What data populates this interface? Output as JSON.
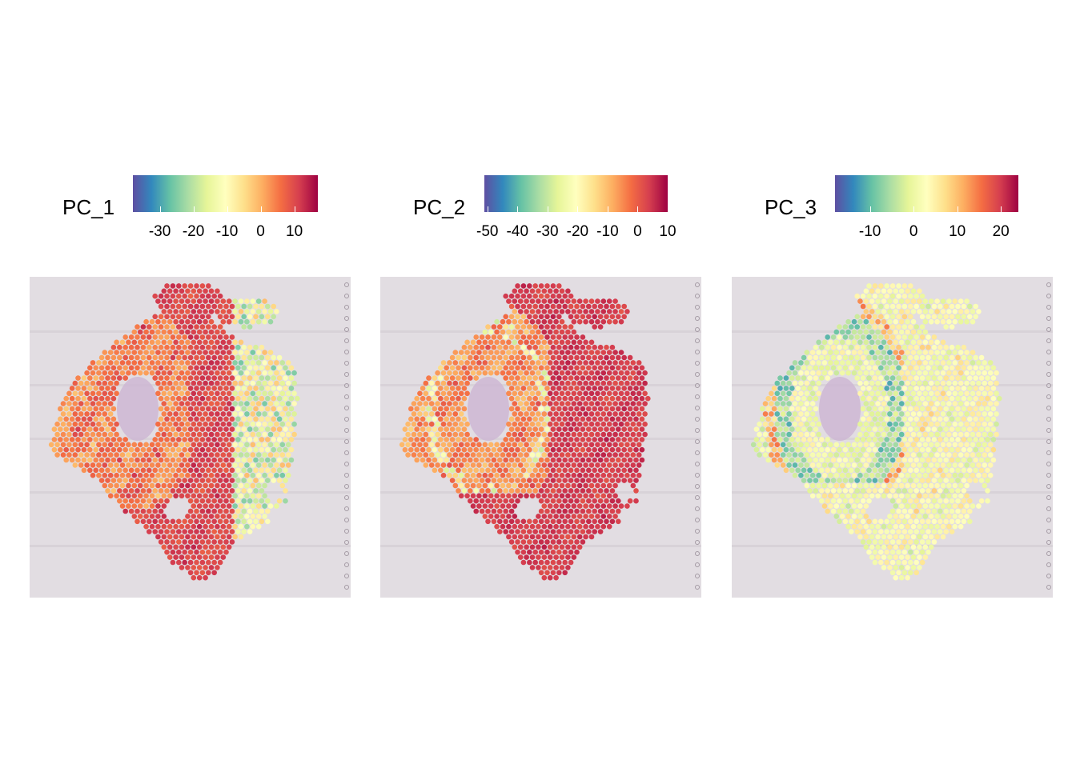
{
  "chart_data": [
    {
      "type": "scatter",
      "subtype": "spatial-feature-plot",
      "legend_title": "PC_1",
      "legend_placement": "top",
      "colormap": "Spectral (reversed)",
      "color_range": [
        -38,
        17
      ],
      "ticks": [
        -30,
        -20,
        -10,
        0,
        10
      ],
      "tick_labels": [
        "-30",
        "-20",
        "-10",
        "0",
        "10"
      ],
      "pattern": "pc1"
    },
    {
      "type": "scatter",
      "subtype": "spatial-feature-plot",
      "legend_title": "PC_2",
      "legend_placement": "top",
      "colormap": "Spectral (reversed)",
      "color_range": [
        -51,
        10
      ],
      "ticks": [
        -50,
        -40,
        -30,
        -20,
        -10,
        0,
        10
      ],
      "tick_labels": [
        "-50",
        "-40",
        "-30",
        "-20",
        "-10",
        "0",
        "10"
      ],
      "pattern": "pc2"
    },
    {
      "type": "scatter",
      "subtype": "spatial-feature-plot",
      "legend_title": "PC_3",
      "legend_placement": "top",
      "colormap": "Spectral (reversed)",
      "color_range": [
        -18,
        24
      ],
      "ticks": [
        -10,
        0,
        10,
        20
      ],
      "tick_labels": [
        "-10",
        "0",
        "10",
        "20"
      ],
      "pattern": "pc3"
    }
  ],
  "colors": {
    "spectral": [
      "#5E4FA2",
      "#3288BD",
      "#66C2A5",
      "#ABDDA4",
      "#E6F598",
      "#FFFFBF",
      "#FEE08B",
      "#FDAE61",
      "#F46D43",
      "#D53E4F",
      "#9E0142"
    ],
    "tissue_background": "#e2dde2"
  }
}
